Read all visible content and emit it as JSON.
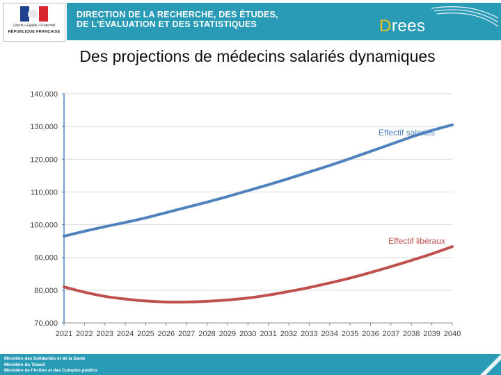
{
  "header": {
    "motto": "Liberté • Égalité • Fraternité",
    "republic": "RÉPUBLIQUE FRANÇAISE",
    "title_line1": "DIRECTION DE LA RECHERCHE, DES ÉTUDES,",
    "title_line2": "DE L'ÉVALUATION ET DES STATISTIQUES",
    "logo_initial": "D",
    "logo_rest": "rees"
  },
  "chart_data": {
    "type": "line",
    "title": "Des projections de médecins salariés dynamiques",
    "xlabel": "",
    "ylabel": "",
    "ylim": [
      70000,
      140000
    ],
    "yticks": [
      70000,
      80000,
      90000,
      100000,
      110000,
      120000,
      130000,
      140000
    ],
    "ytick_labels": [
      "70,000",
      "80,000",
      "90,000",
      "100,000",
      "110,000",
      "120,000",
      "130,000",
      "140,000"
    ],
    "grid": true,
    "categories": [
      "2021",
      "2022",
      "2023",
      "2024",
      "2025",
      "2026",
      "2027",
      "2028",
      "2029",
      "2030",
      "2031",
      "2032",
      "2033",
      "2034",
      "2035",
      "2036",
      "2037",
      "2038",
      "2039",
      "2040"
    ],
    "series": [
      {
        "name": "Effectif salariés",
        "color": "#4f81bd",
        "values": [
          96500,
          98000,
          99400,
          100700,
          102100,
          103700,
          105300,
          106900,
          108600,
          110400,
          112200,
          114100,
          116100,
          118100,
          120200,
          122400,
          124600,
          126800,
          128800,
          130500
        ]
      },
      {
        "name": "Effectif libéraux",
        "color": "#c0504d",
        "values": [
          81000,
          79400,
          78100,
          77300,
          76700,
          76400,
          76400,
          76600,
          77000,
          77600,
          78500,
          79600,
          80800,
          82200,
          83700,
          85400,
          87200,
          89100,
          91100,
          93300
        ]
      }
    ]
  },
  "footer": {
    "line1": "Ministère des Solidarités et de la Santé",
    "line2": "Ministère du Travail",
    "line3": "Ministère de l'Action et des Comptes publics"
  }
}
